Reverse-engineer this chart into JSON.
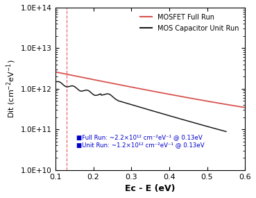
{
  "title": "",
  "xlabel": "Ec - E (eV)",
  "ylabel": "Dit (cm$^{-2}$eV$^{-1}$)",
  "xlim": [
    0.1,
    0.6
  ],
  "ylim_log": [
    10000000000.0,
    100000000000000.0
  ],
  "vline_x": 0.13,
  "vline_color": "#e05050",
  "legend_entries": [
    "MOSFET Full Run",
    "MOS Capacitor Unit Run"
  ],
  "line_colors": [
    "#d9534f",
    "#1a1a1a"
  ],
  "annotation_color": "#0000cc",
  "background_color": "#ffffff"
}
